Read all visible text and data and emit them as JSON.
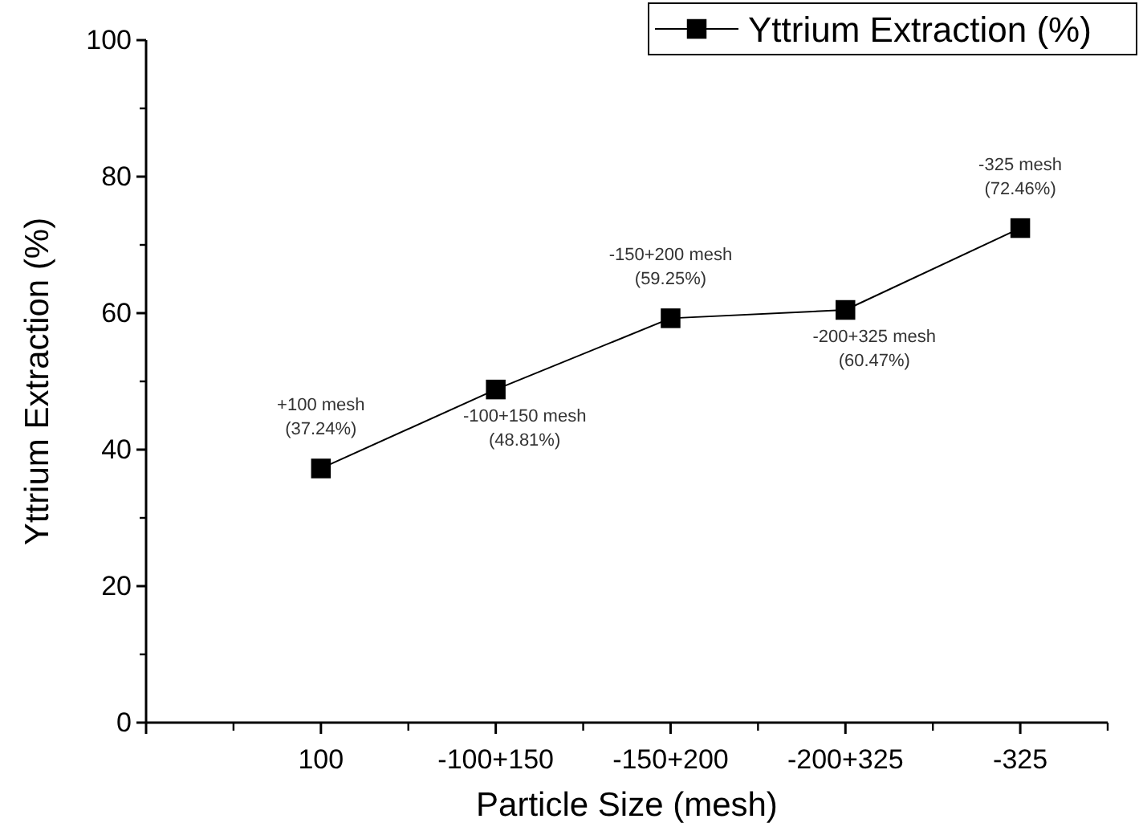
{
  "chart_data": {
    "type": "line",
    "xlabel": "Particle Size (mesh)",
    "ylabel": "Yttrium Extraction (%)",
    "categories": [
      "100",
      "-100+150",
      "-150+200",
      "-200+325",
      "-325"
    ],
    "series": [
      {
        "name": "Yttrium Extraction (%)",
        "color": "#000000",
        "values": [
          37.24,
          48.81,
          59.25,
          60.47,
          72.46
        ]
      }
    ],
    "ylim": [
      0,
      100
    ],
    "yticks": [
      0,
      20,
      40,
      60,
      80,
      100
    ],
    "marker": "square",
    "line_style": "solid",
    "legend": "top right",
    "grid": false,
    "annotations": [
      {
        "text": "+100 mesh\n(37.24%)",
        "x": "100",
        "y": 37.24
      },
      {
        "text": "-100+150 mesh\n(48.81%)",
        "x": "-100+150",
        "y": 48.81
      },
      {
        "text": "-150+200 mesh\n(59.25%)",
        "x": "-150+200",
        "y": 59.25
      },
      {
        "text": "-200+325 mesh\n(60.47%)",
        "x": "-200+325",
        "y": 60.47
      },
      {
        "text": "-325 mesh\n(72.46%)",
        "x": "-325",
        "y": 72.46
      }
    ]
  }
}
